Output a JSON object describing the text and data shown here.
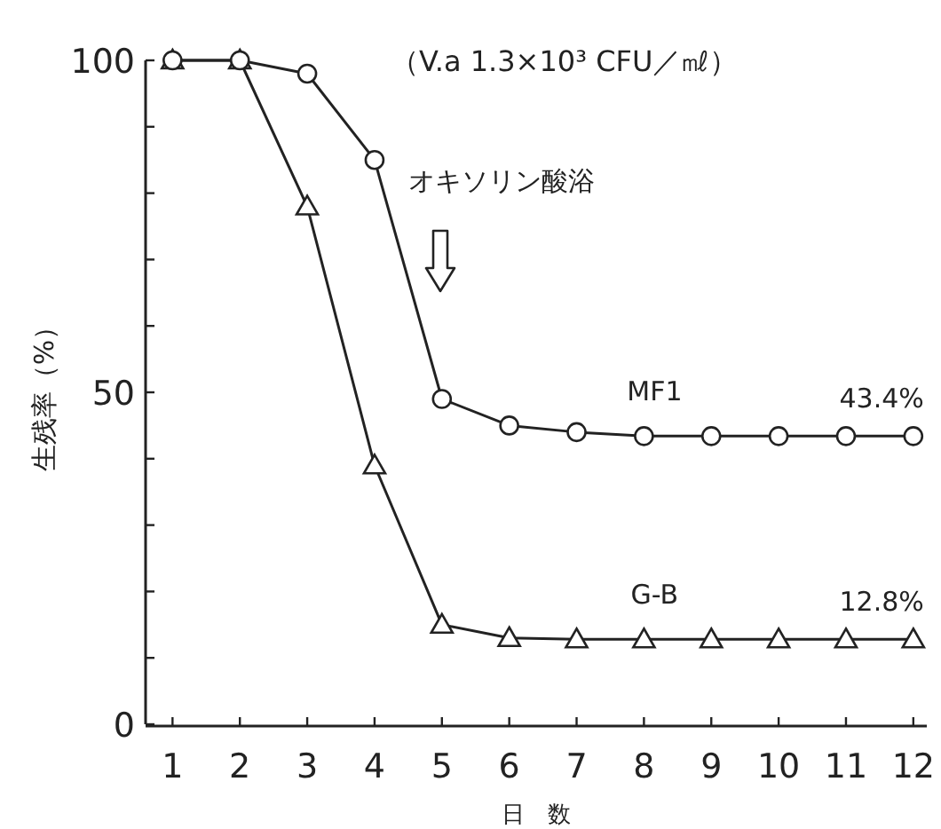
{
  "chart_data": {
    "type": "line",
    "subtitle": "（V.a 1.3×10³ CFU／㎖）",
    "xlabel": "日　数",
    "ylabel": "生残率（%）",
    "x": [
      1,
      2,
      3,
      4,
      5,
      6,
      7,
      8,
      9,
      10,
      11,
      12
    ],
    "xlim": [
      0.6,
      12.2
    ],
    "xticks": [
      1,
      2,
      3,
      4,
      5,
      6,
      7,
      8,
      9,
      10,
      11,
      12
    ],
    "ylim": [
      0,
      100
    ],
    "yticks": [
      0,
      {
        "value": 10,
        "label": null
      },
      {
        "value": 20,
        "label": null
      },
      {
        "value": 30,
        "label": null
      },
      {
        "value": 40,
        "label": null
      },
      50,
      {
        "value": 60,
        "label": null
      },
      {
        "value": 70,
        "label": null
      },
      {
        "value": 80,
        "label": null
      },
      {
        "value": 90,
        "label": null
      },
      100
    ],
    "series": [
      {
        "name": "MF1",
        "color": "#222222",
        "marker": "circle",
        "values": [
          100,
          100,
          98,
          85,
          49,
          45,
          44,
          43.4,
          43.4,
          43.4,
          43.4,
          43.4
        ],
        "value_labels": [
          null,
          null,
          null,
          null,
          null,
          null,
          null,
          null,
          null,
          null,
          null,
          "43.4%"
        ]
      },
      {
        "name": "G-B",
        "color": "#222222",
        "marker": "triangle",
        "values": [
          100,
          100,
          78,
          39,
          15,
          13,
          12.8,
          12.8,
          12.8,
          12.8,
          12.8,
          12.8
        ],
        "value_labels": [
          null,
          null,
          null,
          null,
          null,
          null,
          null,
          null,
          null,
          null,
          null,
          "12.8%"
        ]
      }
    ],
    "annotations": [
      "オキソリン酸浴"
    ]
  }
}
